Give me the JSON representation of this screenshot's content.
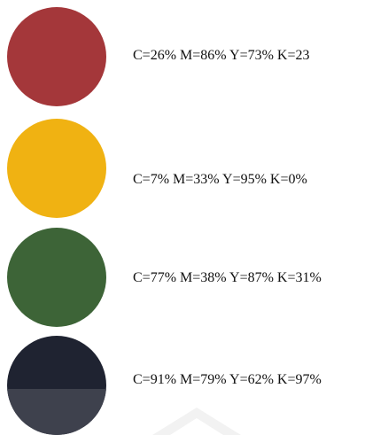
{
  "swatches": [
    {
      "label": "C=26% M=86% Y=73% K=23",
      "color": "#a4373a"
    },
    {
      "label": "C=7% M=33% Y=95% K=0%",
      "color": "#f0b212"
    },
    {
      "label": "C=77% M=38% Y=87% K=31%",
      "color": "#3d6437"
    },
    {
      "label": "C=91% M=79% Y=62% K=97%",
      "color": "#1f2331",
      "lower_color": "#3e414d"
    }
  ]
}
